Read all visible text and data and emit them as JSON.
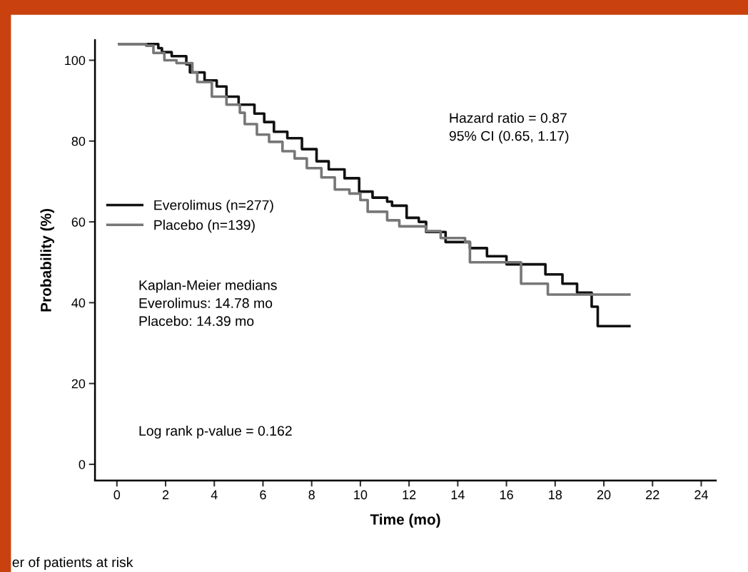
{
  "chart_data": {
    "type": "step",
    "xlabel": "Time (mo)",
    "ylabel": "Probability (%)",
    "xlim": [
      -0.9,
      24.6
    ],
    "ylim": [
      -4,
      105
    ],
    "xticks": [
      0,
      2,
      4,
      6,
      8,
      10,
      12,
      14,
      16,
      18,
      20,
      22,
      24
    ],
    "yticks": [
      0,
      20,
      40,
      60,
      80,
      100
    ],
    "grid": false,
    "legend": "left",
    "marker": "none",
    "line_style": "solid",
    "series": [
      {
        "name": "Everolimus (n=277)",
        "color": "#111111",
        "x": [
          0.1,
          1.7,
          1.85,
          2.25,
          2.85,
          3.0,
          3.6,
          4.1,
          4.5,
          5.0,
          5.65,
          6.05,
          6.45,
          7.0,
          7.6,
          8.2,
          8.7,
          9.35,
          9.95,
          10.5,
          11.1,
          11.3,
          11.9,
          12.4,
          12.7,
          13.5,
          14.5,
          15.2,
          16.0,
          17.6,
          18.3,
          18.9,
          19.5,
          19.75,
          21.05
        ],
        "values": [
          104,
          103,
          102,
          101,
          99,
          97,
          95,
          93.5,
          91,
          89,
          86.8,
          84.7,
          82.3,
          80.7,
          78,
          75,
          73,
          70.8,
          67.5,
          66,
          65,
          64,
          61,
          60,
          57.5,
          55,
          53.5,
          51.5,
          49.5,
          47,
          44.7,
          42.5,
          39,
          34.2,
          34.2
        ]
      },
      {
        "name": "Placebo (n=139)",
        "color": "#777777",
        "x": [
          0.1,
          1.2,
          1.5,
          1.95,
          2.45,
          3.1,
          3.3,
          3.9,
          4.5,
          5.05,
          5.25,
          5.75,
          6.25,
          6.8,
          7.3,
          7.8,
          8.4,
          8.95,
          9.55,
          10.0,
          10.3,
          11.1,
          11.6,
          12.7,
          13.3,
          14.3,
          14.5,
          16.6,
          17.7,
          21.05
        ],
        "values": [
          104,
          103.6,
          101.8,
          100,
          99.3,
          97,
          94.6,
          91,
          89,
          87,
          84.2,
          81.6,
          79.8,
          77.5,
          75.7,
          73.3,
          71,
          68,
          67,
          65.4,
          62.5,
          60.4,
          58.9,
          57.7,
          56,
          55,
          50,
          44.7,
          42,
          42
        ]
      }
    ],
    "annotations": [
      "Hazard ratio = 0.87\n95% CI (0.65, 1.17)",
      "Kaplan-Meier medians\nEverolimus: 14.78 mo\nPlacebo: 14.39 mo",
      "Log rank p-value = 0.162",
      "er of patients at risk"
    ]
  }
}
